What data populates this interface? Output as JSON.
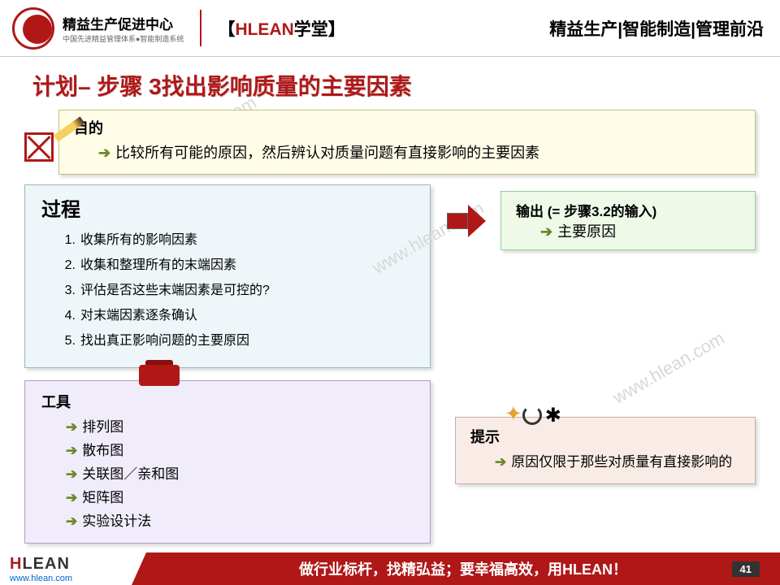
{
  "header": {
    "logo_title": "精益生产促进中心",
    "logo_sub": "中国先进精益管理体系●智能制造系统",
    "center_before": "【",
    "center_brand": "HLEAN",
    "center_suffix": "学堂",
    "center_after": "】",
    "right": "精益生产|智能制造|管理前沿"
  },
  "title": "计划– 步骤 3找出影响质量的主要因素",
  "purpose": {
    "label": "目的",
    "text": "比较所有可能的原因，然后辨认对质量问题有直接影响的主要因素"
  },
  "process": {
    "label": "过程",
    "items": [
      "收集所有的影响因素",
      "收集和整理所有的末端因素",
      "评估是否这些末端因素是可控的?",
      "对末端因素逐条确认",
      "找出真正影响问题的主要原因"
    ]
  },
  "output": {
    "label": "输出 (= 步骤3.2的输入)",
    "text": "主要原因"
  },
  "tools": {
    "label": "工具",
    "items": [
      "排列图",
      "散布图",
      "关联图／亲和图",
      "矩阵图",
      "实验设计法"
    ]
  },
  "tip": {
    "label": "提示",
    "text": "原因仅限于那些对质量有直接影响的"
  },
  "watermark": "www.hlean.com",
  "footer": {
    "brand_h": "H",
    "brand_rest": "LEAN",
    "url": "www.hlean.com",
    "slogan": "做行业标杆，找精弘益；要幸福高效，用HLEAN！",
    "page": "41"
  },
  "colors": {
    "brand_red": "#b01818",
    "purpose_bg": "#fffde8",
    "process_bg": "#eef6f9",
    "output_bg": "#eef9e8",
    "tools_bg": "#f0ecf9",
    "tip_bg": "#f9ece6"
  }
}
